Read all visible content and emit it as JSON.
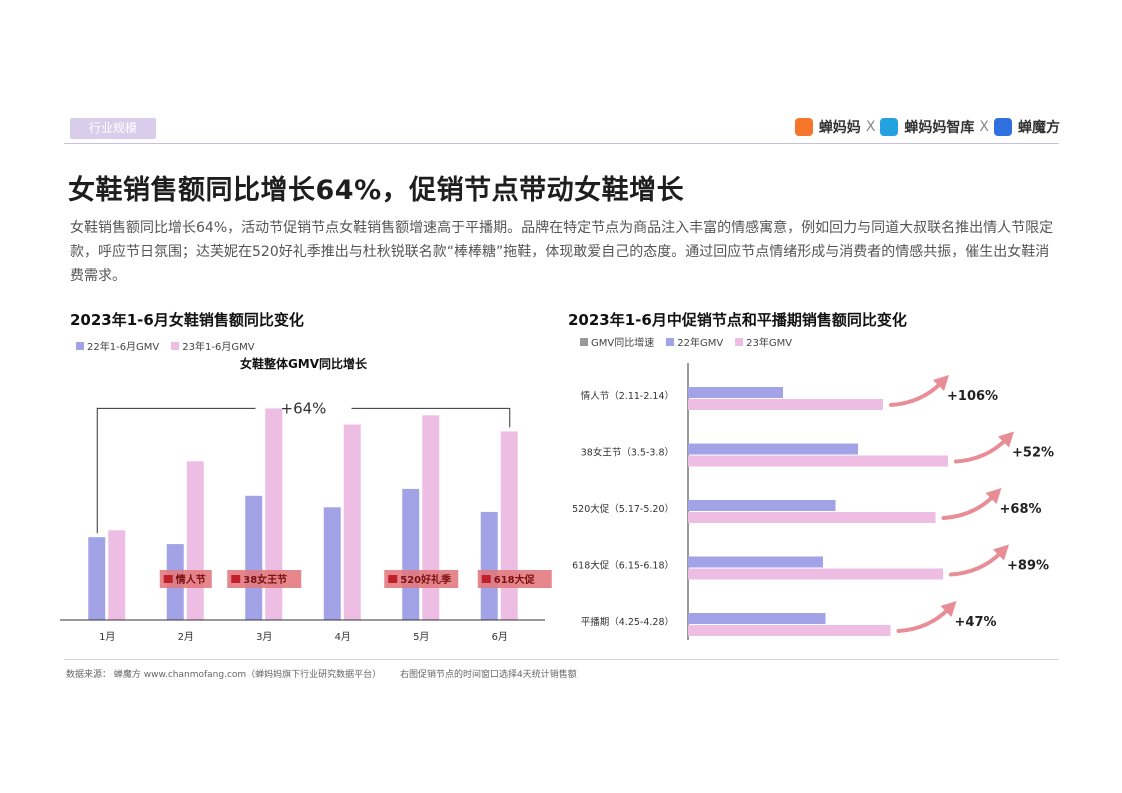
{
  "header": {
    "tag": "行业规模",
    "logos": [
      {
        "name": "蝉妈妈",
        "color": "#f5762a"
      },
      {
        "name": "蝉妈妈智库",
        "color": "#23a2e0"
      },
      {
        "name": "蝉魔方",
        "color": "#2f6fe0"
      }
    ],
    "logo_sep": "X"
  },
  "title": "女鞋销售额同比增长64%，促销节点带动女鞋增长",
  "description": "女鞋销售额同比增长64%，活动节促销节点女鞋销售额增速高于平播期。品牌在特定节点为商品注入丰富的情感寓意，例如回力与同道大叔联名推出情人节限定款，呼应节日氛围；达芙妮在520好礼季推出与杜秋锐联名款“棒棒糖”拖鞋，体现敢爱自己的态度。通过回应节点情绪形成与消费者的情感共振，催生出女鞋消费需求。",
  "colors": {
    "gmv22": "#a2a2e6",
    "gmv23": "#edbde4",
    "growth": "#999999",
    "arrow": "#e88c95",
    "badge": "#e27a80",
    "badge_text": "#7a1010"
  },
  "chart_data": [
    {
      "type": "bar",
      "title": "2023年1-6月女鞋销售额同比变化",
      "categories": [
        "1月",
        "2月",
        "3月",
        "4月",
        "5月",
        "6月"
      ],
      "series": [
        {
          "name": "22年1-6月GMV",
          "values": [
            36,
            33,
            54,
            49,
            57,
            47
          ]
        },
        {
          "name": "23年1-6月GMV",
          "values": [
            39,
            69,
            92,
            85,
            89,
            82
          ]
        }
      ],
      "annotation": {
        "label": "女鞋整体GMV同比增长",
        "value": "+64%"
      },
      "event_badges": [
        {
          "month": "2月",
          "label": "情人节"
        },
        {
          "month": "3月",
          "label": "38女王节"
        },
        {
          "month": "5月",
          "label": "520好礼季"
        },
        {
          "month": "6月",
          "label": "618大促"
        }
      ],
      "ylim": [
        0,
        100
      ],
      "grid": false,
      "legend": "top-left"
    },
    {
      "type": "bar",
      "orientation": "horizontal",
      "title": "2023年1-6月中促销节点和平播期销售额同比变化",
      "categories": [
        "情人节（2.11-2.14）",
        "38女王节（3.5-3.8）",
        "520大促（5.17-5.20）",
        "618大促（6.15-6.18）",
        "平播期（4.25-4.28）"
      ],
      "series": [
        {
          "name": "22年GMV",
          "values": [
            38,
            68,
            59,
            54,
            55
          ]
        },
        {
          "name": "23年GMV",
          "values": [
            78,
            104,
            99,
            102,
            81
          ]
        }
      ],
      "growth_name": "GMV同比增速",
      "growth_labels": [
        "+106%",
        "+52%",
        "+68%",
        "+89%",
        "+47%"
      ],
      "xlim": [
        0,
        120
      ],
      "grid": false,
      "legend": "top-left"
    }
  ],
  "footer": {
    "source": "数据来源：   蝉魔方    www.chanmofang.com（蝉妈妈旗下行业研究数据平台）",
    "note": "右图促销节点的时间窗口选择4天统计销售额"
  }
}
